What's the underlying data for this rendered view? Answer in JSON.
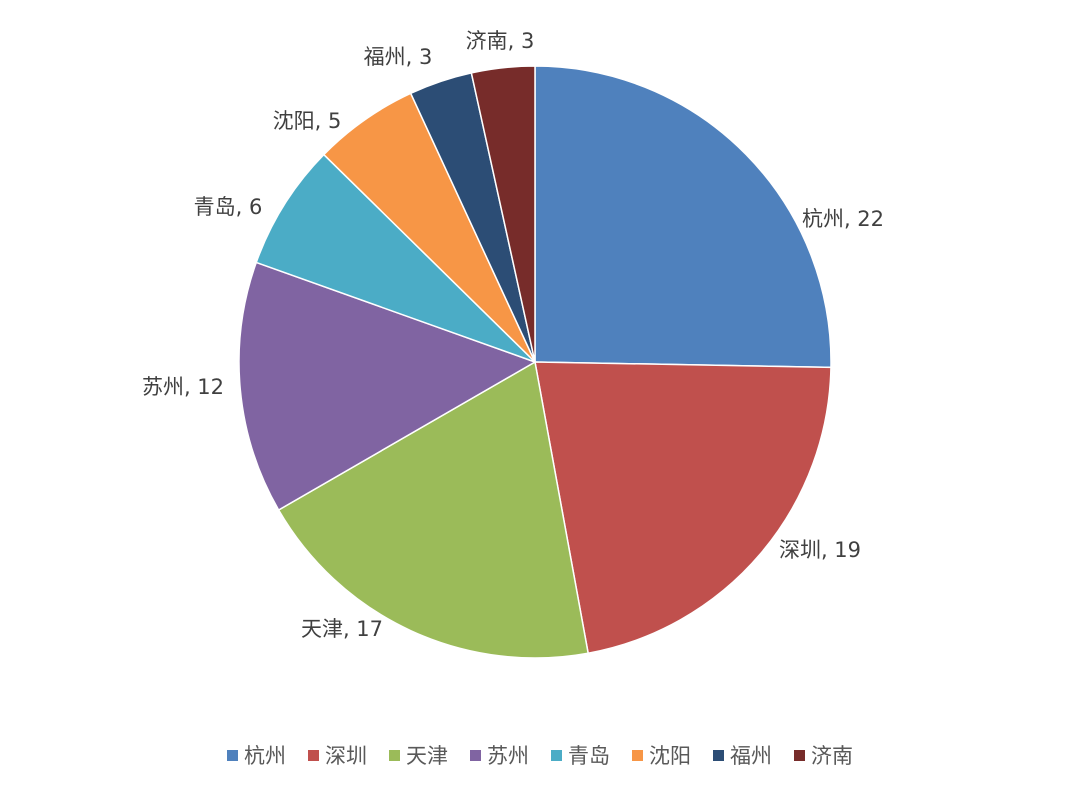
{
  "chart_data": {
    "type": "pie",
    "title": "",
    "categories": [
      "杭州",
      "深圳",
      "天津",
      "苏州",
      "青岛",
      "沈阳",
      "福州",
      "济南"
    ],
    "values": [
      22,
      19,
      17,
      12,
      6,
      5,
      3,
      3
    ],
    "colors": [
      "#4F81BD",
      "#C0504D",
      "#9BBB59",
      "#8064A2",
      "#4BACC6",
      "#F79646",
      "#2C4D75",
      "#772C2A"
    ],
    "data_labels": [
      "杭州, 22",
      "深圳, 19",
      "天津, 17",
      "苏州, 12",
      "青岛, 6",
      "沈阳, 5",
      "福州, 3",
      "济南, 3"
    ],
    "start": "top, clockwise",
    "legend": "bottom"
  }
}
